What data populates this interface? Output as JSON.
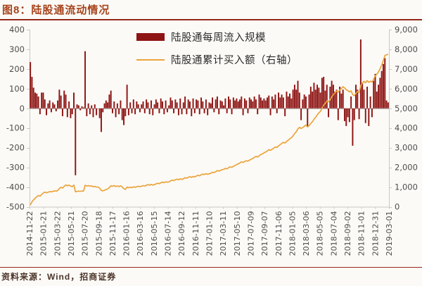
{
  "header": {
    "title": "图8：陆股通流动情况"
  },
  "footer": {
    "source": "资料来源：Wind，招商证券"
  },
  "legend": [
    {
      "label": "陆股通每周流入规模",
      "type": "bar",
      "color": "#8e1414"
    },
    {
      "label": "陆股通累计买入额（右轴）",
      "type": "line",
      "color": "#eba43c"
    }
  ],
  "colors": {
    "title": "#a6431c",
    "rule": "#96281b",
    "bars": "#8e1414",
    "line": "#eba43c",
    "axis": "#c8c8c8",
    "zero_line": "#b3b3b3",
    "tick_text": "#4d4d4d",
    "background": "#fcfaf6"
  },
  "chart_data": {
    "type": "bar+line",
    "title": "陆股通流动情况",
    "grid": false,
    "legend_position": "top-center",
    "left_axis": {
      "min": -500,
      "max": 400,
      "step": 100,
      "tick_labels": [
        "400",
        "300",
        "200",
        "100",
        "0",
        "-100",
        "-200",
        "-300",
        "-400",
        "-500"
      ]
    },
    "right_axis": {
      "min": 0,
      "max": 9000,
      "step": 1000,
      "tick_labels": [
        "9,000",
        "8,000",
        "7,000",
        "6,000",
        "5,000",
        "4,000",
        "3,000",
        "2,000",
        "1,000",
        "0"
      ]
    },
    "x_tick_labels": [
      "2014-11-22",
      "2015-01-21",
      "2015-03-22",
      "2015-05-21",
      "2015-07-20",
      "2015-09-18",
      "2015-11-17",
      "2016-01-16",
      "2016-03-16",
      "2016-05-15",
      "2016-07-14",
      "2016-09-12",
      "2016-11-11",
      "2017-01-10",
      "2017-03-11",
      "2017-05-10",
      "2017-07-09",
      "2017-09-07",
      "2017-11-06",
      "2018-01-05",
      "2018-03-06",
      "2018-05-05",
      "2018-07-04",
      "2018-09-02",
      "2018-11-01",
      "2018-12-31",
      "2019-03-01"
    ],
    "x_label_rotation": -90,
    "series": [
      {
        "name": "陆股通每周流入规模",
        "type": "bar",
        "axis": "left",
        "color": "#8e1414",
        "values": [
          235,
          160,
          105,
          80,
          75,
          60,
          -30,
          80,
          80,
          45,
          -35,
          25,
          40,
          -20,
          30,
          20,
          -15,
          40,
          95,
          65,
          -40,
          90,
          70,
          -45,
          35,
          -50,
          -30,
          80,
          -340,
          20,
          15,
          -10,
          10,
          5,
          290,
          -40,
          25,
          -30,
          15,
          -45,
          20,
          -35,
          0,
          -50,
          -120,
          -20,
          25,
          40,
          30,
          70,
          90,
          -25,
          35,
          -45,
          25,
          -30,
          40,
          -60,
          -85,
          -40,
          120,
          -35,
          30,
          -25,
          45,
          -30,
          35,
          20,
          -20,
          20,
          35,
          -25,
          45,
          30,
          -30,
          40,
          -35,
          20,
          45,
          30,
          -25,
          50,
          35,
          -30,
          40,
          -20,
          15,
          55,
          40,
          -25,
          45,
          30,
          -35,
          50,
          -30,
          30,
          60,
          -30,
          45,
          35,
          -40,
          50,
          -25,
          45,
          40,
          -30,
          55,
          35,
          -25,
          45,
          -35,
          30,
          25,
          55,
          -20,
          45,
          60,
          -30,
          40,
          35,
          15,
          50,
          -25,
          60,
          45,
          -30,
          55,
          40,
          50,
          35,
          45,
          60,
          -35,
          50,
          40,
          -25,
          55,
          45,
          35,
          60,
          45,
          -30,
          70,
          55,
          40,
          50,
          40,
          55,
          65,
          -35,
          60,
          45,
          70,
          -25,
          80,
          55,
          70,
          55,
          -40,
          85,
          60,
          75,
          50,
          95,
          120,
          95,
          140,
          80,
          -60,
          45,
          70,
          60,
          -95,
          70,
          110,
          85,
          130,
          95,
          120,
          105,
          80,
          155,
          160,
          90,
          120,
          -45,
          110,
          140,
          120,
          85,
          95,
          -60,
          110,
          75,
          95,
          -65,
          -90,
          -45,
          -70,
          60,
          -190,
          -60,
          120,
          95,
          -55,
          350,
          130,
          95,
          -75,
          110,
          -90,
          60,
          -45,
          140,
          175,
          85,
          120,
          155,
          190,
          225,
          255,
          40,
          30
        ]
      },
      {
        "name": "陆股通累计买入额（右轴）",
        "type": "line",
        "axis": "right",
        "color": "#eba43c",
        "cumulative_of_bars": true,
        "start": 90,
        "end_value": 7750
      }
    ]
  }
}
